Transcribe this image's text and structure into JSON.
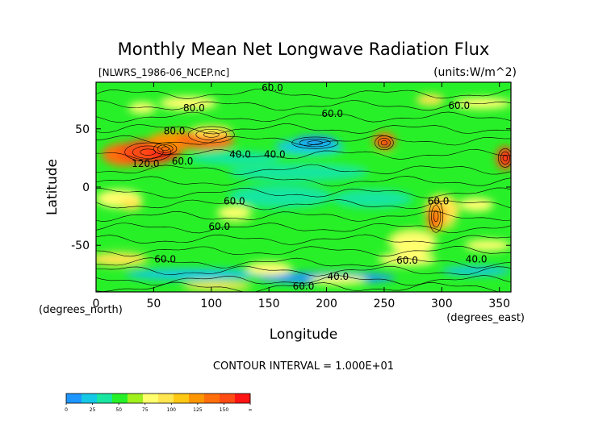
{
  "chart_data": {
    "type": "heatmap",
    "title": "Monthly Mean Net Longwave Radiation Flux",
    "subtitle": "[NLWRS_1986-06_NCEP.nc]",
    "units_label": "(units:W/m^2)",
    "xlabel": "Longitude",
    "ylabel": "Latitude",
    "x_unit_label": "(degrees_east)",
    "y_unit_label": "(degrees_north)",
    "xlim": [
      0,
      360
    ],
    "ylim": [
      -90,
      90
    ],
    "x_ticks": [
      0,
      50,
      100,
      150,
      200,
      250,
      300,
      350
    ],
    "y_ticks": [
      50,
      0,
      -50
    ],
    "contour_interval_text": "CONTOUR INTERVAL = 1.000E+01",
    "contour_labels": [
      {
        "text": "60.0",
        "lon": 153,
        "lat": 85
      },
      {
        "text": "80.0",
        "lon": 85,
        "lat": 68
      },
      {
        "text": "60.0",
        "lon": 205,
        "lat": 63
      },
      {
        "text": "80.0",
        "lon": 68,
        "lat": 48
      },
      {
        "text": "120.0",
        "lon": 43,
        "lat": 20
      },
      {
        "text": "60.0",
        "lon": 75,
        "lat": 22
      },
      {
        "text": "40.0",
        "lon": 125,
        "lat": 28
      },
      {
        "text": "40.0",
        "lon": 155,
        "lat": 28
      },
      {
        "text": "60.0",
        "lon": 315,
        "lat": 70
      },
      {
        "text": "60.0",
        "lon": 297,
        "lat": -12
      },
      {
        "text": "60.0",
        "lon": 120,
        "lat": -12
      },
      {
        "text": "60.0",
        "lon": 107,
        "lat": -34
      },
      {
        "text": "60.0",
        "lon": 60,
        "lat": -62
      },
      {
        "text": "60.0",
        "lon": 270,
        "lat": -63
      },
      {
        "text": "40.0",
        "lon": 330,
        "lat": -62
      },
      {
        "text": "40.0",
        "lon": 210,
        "lat": -77
      },
      {
        "text": "60.0",
        "lon": 180,
        "lat": -85
      }
    ],
    "colorbar": {
      "tick_labels": [
        "0",
        "25",
        "50",
        "75",
        "100",
        "125",
        "150",
        "∞"
      ],
      "colors": [
        "#1e96ff",
        "#15c8e6",
        "#19e6a0",
        "#28f028",
        "#a0f01e",
        "#ffff6e",
        "#ffe650",
        "#ffc814",
        "#ff9600",
        "#ff6e0a",
        "#ff4b14",
        "#ff1414"
      ]
    },
    "legend": "bottom-left colorbar"
  }
}
